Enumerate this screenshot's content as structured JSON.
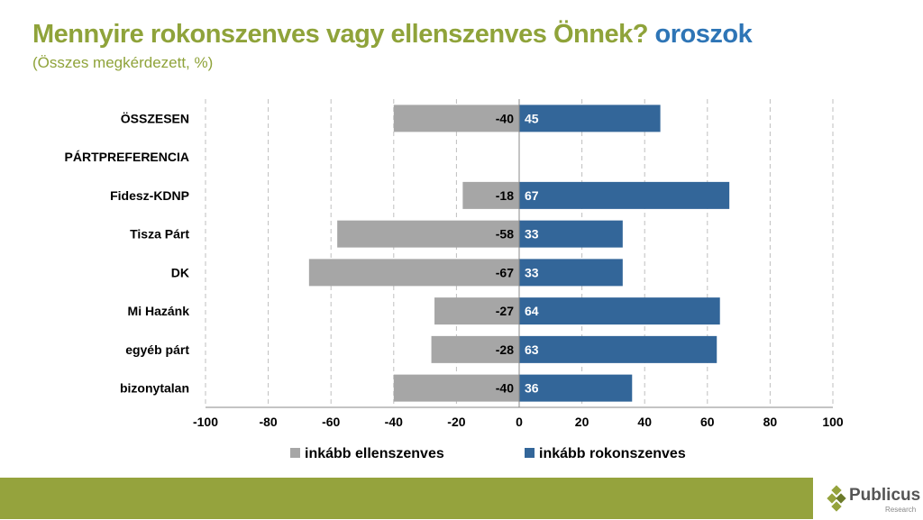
{
  "title": {
    "main": "Mennyire rokonszenves vagy ellenszenves Önnek?",
    "highlight": "oroszok"
  },
  "subtitle": "(Összes megkérdezett, %)",
  "logo": {
    "name": "Publicus",
    "sub": "Research"
  },
  "chart_data": {
    "type": "bar",
    "orientation": "horizontal-diverging",
    "categories": [
      "ÖSSZESEN",
      "PÁRTPREFERENCIA",
      "Fidesz-KDNP",
      "Tisza Párt",
      "DK",
      "Mi Hazánk",
      "egyéb párt",
      "bizonytalan"
    ],
    "series": [
      {
        "name": "inkább ellenszenves",
        "color": "#a6a6a6",
        "values": [
          -40,
          null,
          -18,
          -58,
          -67,
          -27,
          -28,
          -40
        ]
      },
      {
        "name": "inkább rokonszenves",
        "color": "#336699",
        "values": [
          45,
          null,
          67,
          33,
          33,
          64,
          63,
          36
        ]
      }
    ],
    "xlim": [
      -100,
      100
    ],
    "xticks": [
      "-100",
      "-80",
      "-60",
      "-40",
      "-20",
      "0",
      "20",
      "40",
      "60",
      "80",
      "100"
    ],
    "grid": "vertical dashed",
    "legend": "bottom"
  }
}
